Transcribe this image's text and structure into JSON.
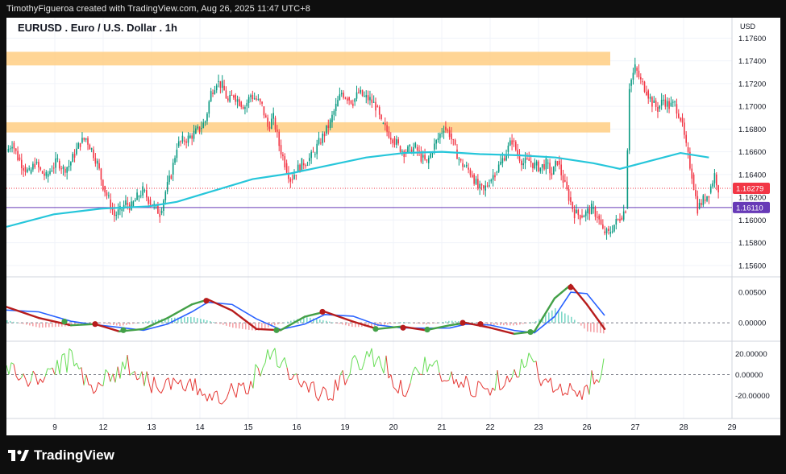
{
  "header": {
    "attribution": "TimothyFigueroa created with TradingView.com, Aug 26, 2025 11:47 UTC+8"
  },
  "footer": {
    "brand": "TradingView"
  },
  "chart_data": {
    "type": "candlestick",
    "title": "EURUSD . Euro / U.S. Dollar . 1h",
    "currency": "USD",
    "price_axis": {
      "range": [
        1.155,
        1.1778
      ],
      "ticks": [
        "1.17600",
        "1.17400",
        "1.17200",
        "1.17000",
        "1.16800",
        "1.16600",
        "1.16400",
        "1.16200",
        "1.16000",
        "1.15800",
        "1.15600"
      ],
      "tick_values": [
        1.176,
        1.174,
        1.172,
        1.17,
        1.168,
        1.166,
        1.164,
        1.162,
        1.16,
        1.158,
        1.156
      ]
    },
    "x_axis": {
      "tick_labels": [
        "9",
        "12",
        "13",
        "14",
        "15",
        "16",
        "19",
        "20",
        "21",
        "22",
        "23",
        "26",
        "27",
        "28",
        "29"
      ],
      "tick_fraction": [
        0.06,
        0.12,
        0.18,
        0.24,
        0.3,
        0.36,
        0.42,
        0.48,
        0.54,
        0.6,
        0.66,
        0.72,
        0.78,
        0.84,
        0.9
      ]
    },
    "resistance_zones": [
      {
        "low": 1.1736,
        "high": 1.1748,
        "color": "#ffd08a"
      },
      {
        "low": 1.1677,
        "high": 1.1686,
        "color": "#ffd08a"
      }
    ],
    "last_price": {
      "label": "1.16279",
      "value": 1.16279,
      "color": "#f23645"
    },
    "level_line": {
      "label": "1.16110",
      "value": 1.1611,
      "color": "#673ab7"
    },
    "price_path": [
      [
        0,
        1.166
      ],
      [
        6,
        1.1668
      ],
      [
        12,
        1.1655
      ],
      [
        18,
        1.1647
      ],
      [
        24,
        1.1641
      ],
      [
        30,
        1.165
      ],
      [
        36,
        1.1643
      ],
      [
        42,
        1.1638
      ],
      [
        48,
        1.1646
      ],
      [
        54,
        1.1652
      ],
      [
        60,
        1.1645
      ],
      [
        66,
        1.1648
      ],
      [
        72,
        1.1658
      ],
      [
        78,
        1.1668
      ],
      [
        84,
        1.1672
      ],
      [
        90,
        1.1662
      ],
      [
        96,
        1.165
      ],
      [
        102,
        1.163
      ],
      [
        108,
        1.1618
      ],
      [
        114,
        1.1604
      ],
      [
        120,
        1.1608
      ],
      [
        126,
        1.1615
      ],
      [
        132,
        1.1612
      ],
      [
        138,
        1.162
      ],
      [
        144,
        1.1626
      ],
      [
        150,
        1.1618
      ],
      [
        156,
        1.1612
      ],
      [
        162,
        1.1606
      ],
      [
        168,
        1.1625
      ],
      [
        174,
        1.164
      ],
      [
        180,
        1.1665
      ],
      [
        186,
        1.167
      ],
      [
        192,
        1.1672
      ],
      [
        198,
        1.1676
      ],
      [
        204,
        1.168
      ],
      [
        210,
        1.1687
      ],
      [
        216,
        1.1712
      ],
      [
        222,
        1.1722
      ],
      [
        228,
        1.1718
      ],
      [
        234,
        1.1704
      ],
      [
        240,
        1.171
      ],
      [
        246,
        1.1704
      ],
      [
        252,
        1.17
      ],
      [
        258,
        1.171
      ],
      [
        264,
        1.1706
      ],
      [
        270,
        1.17
      ],
      [
        276,
        1.1682
      ],
      [
        282,
        1.169
      ],
      [
        288,
        1.1666
      ],
      [
        294,
        1.165
      ],
      [
        300,
        1.1636
      ],
      [
        306,
        1.1643
      ],
      [
        312,
        1.165
      ],
      [
        318,
        1.1652
      ],
      [
        324,
        1.1658
      ],
      [
        330,
        1.1668
      ],
      [
        336,
        1.1676
      ],
      [
        342,
        1.1686
      ],
      [
        348,
        1.17
      ],
      [
        354,
        1.1712
      ],
      [
        360,
        1.1708
      ],
      [
        366,
        1.1704
      ],
      [
        372,
        1.1712
      ],
      [
        378,
        1.1708
      ],
      [
        384,
        1.1706
      ],
      [
        390,
        1.17
      ],
      [
        396,
        1.1685
      ],
      [
        402,
        1.1678
      ],
      [
        408,
        1.1672
      ],
      [
        414,
        1.1665
      ],
      [
        420,
        1.166
      ],
      [
        426,
        1.1662
      ],
      [
        432,
        1.1664
      ],
      [
        438,
        1.1655
      ],
      [
        444,
        1.165
      ],
      [
        450,
        1.1662
      ],
      [
        456,
        1.1672
      ],
      [
        462,
        1.1682
      ],
      [
        468,
        1.1676
      ],
      [
        474,
        1.1662
      ],
      [
        480,
        1.165
      ],
      [
        486,
        1.1646
      ],
      [
        492,
        1.164
      ],
      [
        498,
        1.1628
      ],
      [
        504,
        1.1626
      ],
      [
        510,
        1.1634
      ],
      [
        516,
        1.1642
      ],
      [
        522,
        1.165
      ],
      [
        528,
        1.166
      ],
      [
        534,
        1.167
      ],
      [
        540,
        1.1658
      ],
      [
        546,
        1.165
      ],
      [
        552,
        1.1652
      ],
      [
        558,
        1.1648
      ],
      [
        564,
        1.1646
      ],
      [
        570,
        1.165
      ],
      [
        576,
        1.164
      ],
      [
        582,
        1.1652
      ],
      [
        588,
        1.1635
      ],
      [
        594,
        1.162
      ],
      [
        600,
        1.1606
      ],
      [
        606,
        1.1604
      ],
      [
        612,
        1.1606
      ],
      [
        618,
        1.161
      ],
      [
        624,
        1.1604
      ],
      [
        630,
        1.159
      ],
      [
        636,
        1.1588
      ],
      [
        642,
        1.1596
      ],
      [
        648,
        1.1602
      ],
      [
        654,
        1.161
      ],
      [
        658,
        1.1718
      ],
      [
        664,
        1.1734
      ],
      [
        670,
        1.1722
      ],
      [
        676,
        1.1714
      ],
      [
        682,
        1.1703
      ],
      [
        688,
        1.1698
      ],
      [
        694,
        1.1706
      ],
      [
        700,
        1.17
      ],
      [
        706,
        1.1702
      ],
      [
        712,
        1.169
      ],
      [
        718,
        1.1664
      ],
      [
        724,
        1.164
      ],
      [
        730,
        1.161
      ],
      [
        736,
        1.1618
      ],
      [
        742,
        1.1624
      ],
      [
        748,
        1.164
      ],
      [
        752,
        1.1628
      ]
    ],
    "ma_path": [
      [
        0,
        1.1594
      ],
      [
        50,
        1.1605
      ],
      [
        100,
        1.161
      ],
      [
        150,
        1.1612
      ],
      [
        180,
        1.1616
      ],
      [
        220,
        1.1626
      ],
      [
        260,
        1.1636
      ],
      [
        300,
        1.1641
      ],
      [
        340,
        1.1648
      ],
      [
        380,
        1.1655
      ],
      [
        420,
        1.1659
      ],
      [
        460,
        1.166
      ],
      [
        500,
        1.1658
      ],
      [
        540,
        1.1657
      ],
      [
        580,
        1.1655
      ],
      [
        620,
        1.165
      ],
      [
        648,
        1.1645
      ],
      [
        680,
        1.1652
      ],
      [
        712,
        1.1659
      ],
      [
        742,
        1.1655
      ]
    ],
    "macd_panel": {
      "ticks": [
        "0.00500",
        "0.00000"
      ],
      "tick_values": [
        0.005,
        0.0
      ],
      "range": [
        -0.003,
        0.0075
      ]
    },
    "oscillator_panel": {
      "ticks": [
        "20.00000",
        "0.00000",
        "-20.00000"
      ],
      "tick_values": [
        20,
        0,
        -20
      ],
      "range": [
        -42,
        32
      ]
    }
  }
}
